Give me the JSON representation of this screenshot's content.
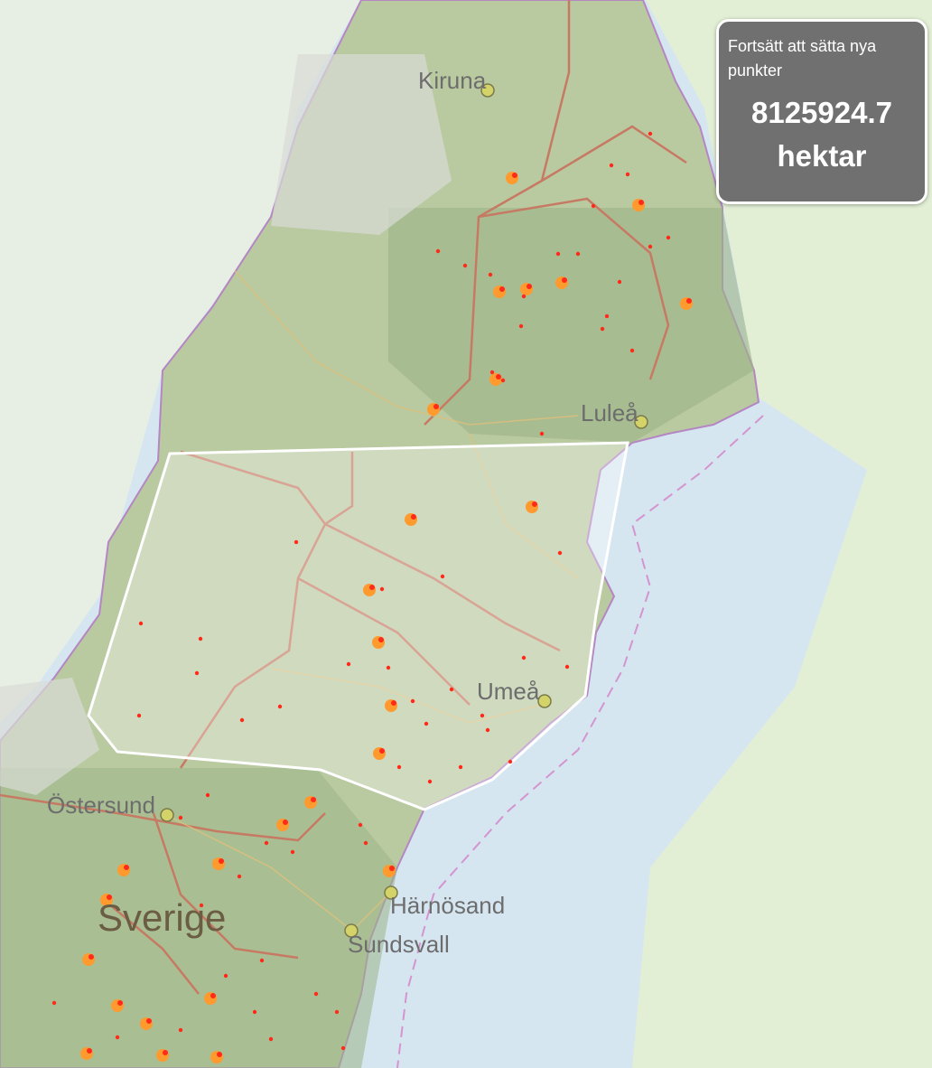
{
  "map": {
    "cities": [
      {
        "name": "Kiruna"
      },
      {
        "name": "Luleå"
      },
      {
        "name": "Umeå"
      },
      {
        "name": "Östersund"
      },
      {
        "name": "Härnösand"
      },
      {
        "name": "Sundsvall"
      }
    ],
    "country_label": "Sverige",
    "colors": {
      "land": "#b9c9a0",
      "forest": "#9cb487",
      "sea": "#d6e6f1",
      "finland": "#e2efd5",
      "county_border": "#c77a63",
      "national_border": "#b586c4",
      "fire_point": "#ff2a1a",
      "fire_halo": "#ff9a2e",
      "polygon_stroke": "#ffffff"
    }
  },
  "info_box": {
    "instruction": "Fortsätt att sätta nya punkter",
    "area_value": "8125924.7",
    "area_unit": "hektar"
  }
}
